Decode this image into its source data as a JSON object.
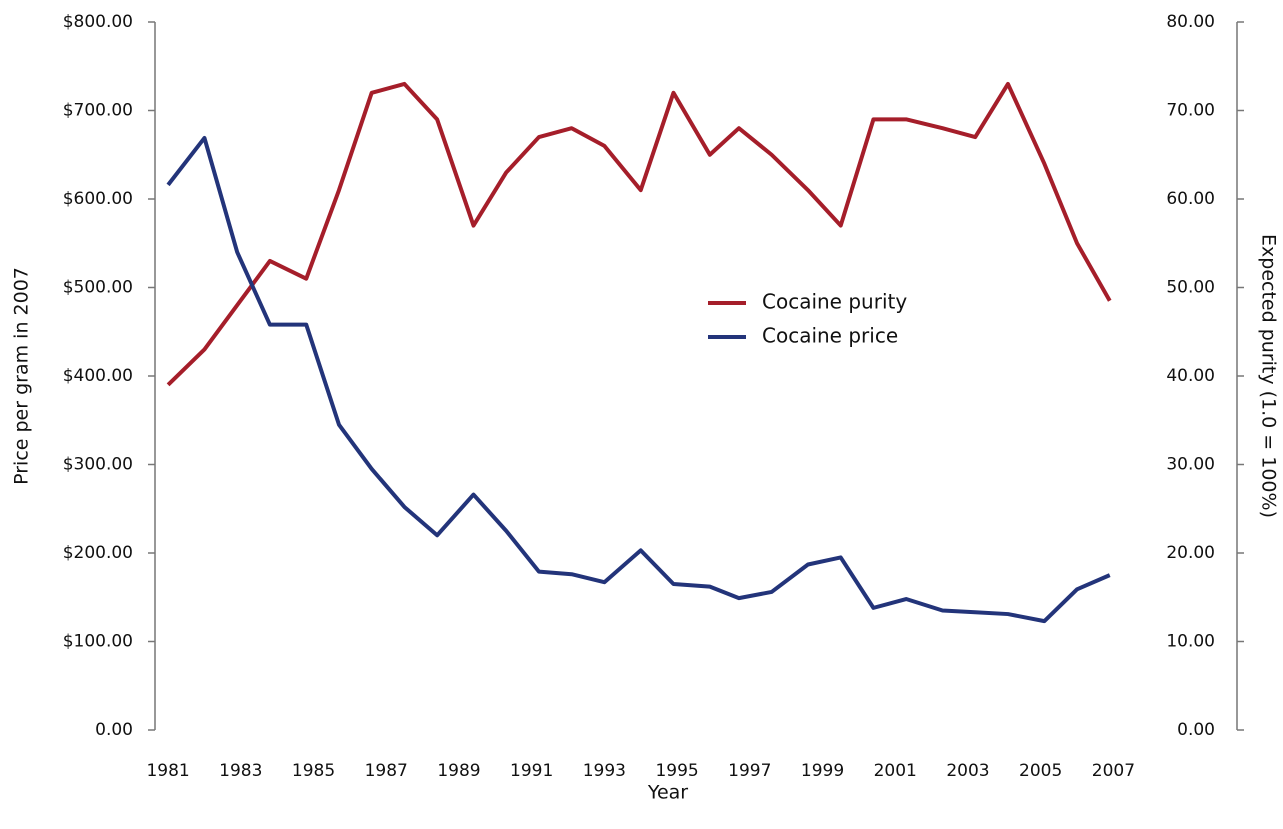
{
  "chart_data": {
    "type": "line",
    "x_label": "Year",
    "y_label": "Price per gram in 2007",
    "y2_label": "Expected purity (1.0 = 100%)",
    "x": [
      1981.0,
      1982.0,
      1982.9,
      1983.8,
      1984.8,
      1985.7,
      1986.6,
      1987.5,
      1988.4,
      1989.4,
      1990.3,
      1991.2,
      1992.1,
      1993.0,
      1994.0,
      1994.9,
      1995.9,
      1996.7,
      1997.6,
      1998.6,
      1999.5,
      2000.4,
      2001.3,
      2002.3,
      2003.2,
      2004.1,
      2005.1,
      2006.0,
      2006.9
    ],
    "xlim": [
      1980.64,
      2010.4
    ],
    "xticks": [
      1981,
      1983,
      1985,
      1987,
      1989,
      1991,
      1993,
      1995,
      1997,
      1999,
      2001,
      2003,
      2005,
      2007
    ],
    "ylim": [
      0,
      800
    ],
    "yticks": [
      {
        "value": 0,
        "label": "0.00"
      },
      {
        "value": 100,
        "label": "$100.00"
      },
      {
        "value": 200,
        "label": "$200.00"
      },
      {
        "value": 300,
        "label": "$300.00"
      },
      {
        "value": 400,
        "label": "$400.00"
      },
      {
        "value": 500,
        "label": "$500.00"
      },
      {
        "value": 600,
        "label": "$600.00"
      },
      {
        "value": 700,
        "label": "$700.00"
      },
      {
        "value": 800,
        "label": "$800.00"
      }
    ],
    "y2lim": [
      0,
      80
    ],
    "y2ticks": [
      {
        "value": 0,
        "label": "0.00"
      },
      {
        "value": 10,
        "label": "10.00"
      },
      {
        "value": 20,
        "label": "20.00"
      },
      {
        "value": 30,
        "label": "30.00"
      },
      {
        "value": 40,
        "label": "40.00"
      },
      {
        "value": 50,
        "label": "50.00"
      },
      {
        "value": 60,
        "label": "60.00"
      },
      {
        "value": 70,
        "label": "70.00"
      },
      {
        "value": 80,
        "label": "80.00"
      }
    ],
    "grid": false,
    "legend": "center",
    "series": [
      {
        "name": "Cocaine purity",
        "color": "#a51e2a",
        "axis": "y2",
        "values": [
          39,
          43,
          48,
          53,
          51,
          61,
          72,
          73,
          69,
          57,
          63,
          67,
          68,
          66,
          61,
          72,
          65,
          68,
          65,
          61,
          57,
          69,
          69,
          68,
          67,
          73,
          64,
          55,
          48.5
        ]
      },
      {
        "name": "Cocaine price",
        "color": "#23347a",
        "axis": "y",
        "values": [
          616,
          669,
          540,
          458,
          458,
          345,
          295,
          252,
          220,
          266,
          225,
          179,
          176,
          167,
          203,
          165,
          162,
          149,
          156,
          187,
          195,
          138,
          148,
          135,
          133,
          131,
          123,
          159,
          175
        ]
      }
    ]
  }
}
